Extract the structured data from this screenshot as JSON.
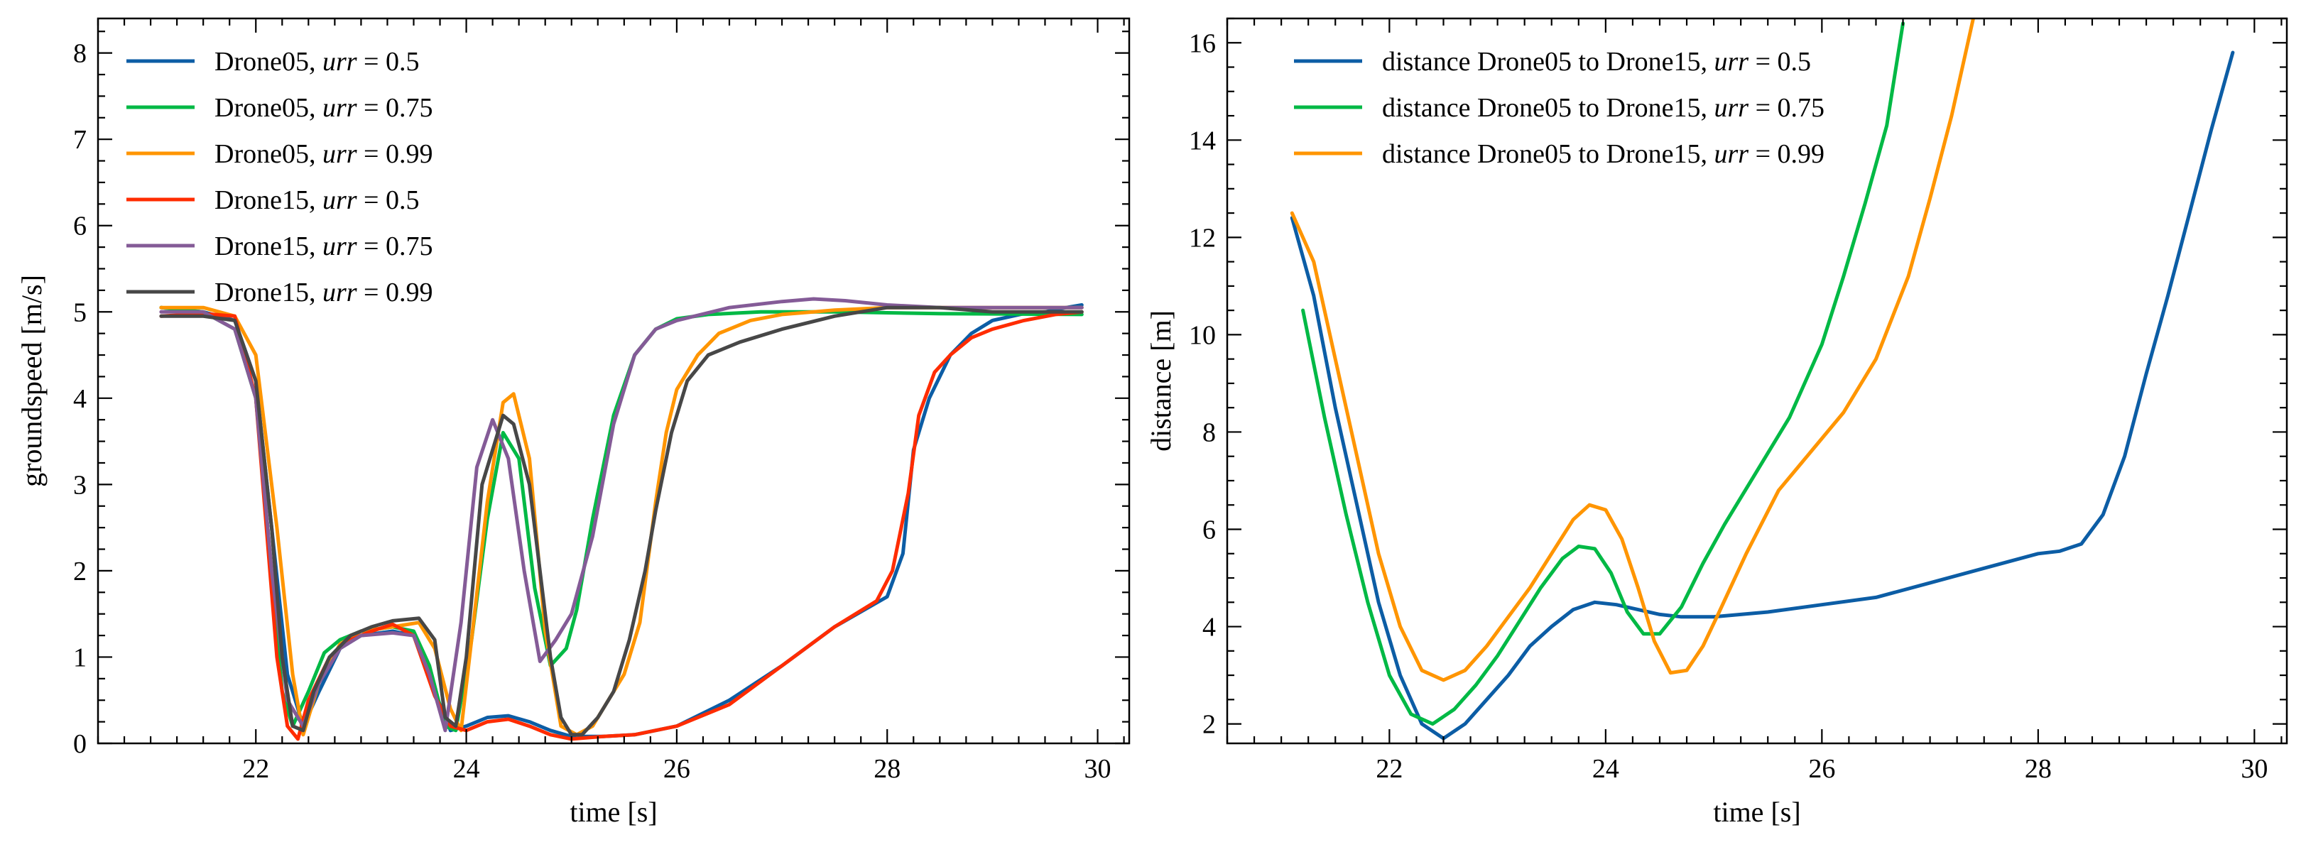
{
  "chart_data": [
    {
      "type": "line",
      "xlabel": "time [s]",
      "ylabel": "groundspeed [m/s]",
      "xlim": [
        20.5,
        30.3
      ],
      "ylim": [
        0,
        8.4
      ],
      "xticks": [
        "22",
        "24",
        "26",
        "28",
        "30"
      ],
      "yticks": [
        "0",
        "1",
        "2",
        "3",
        "4",
        "5",
        "6",
        "7",
        "8"
      ],
      "legend_position": "top-left",
      "series": [
        {
          "name": "Drone05, urr = 0.5",
          "color": "#0C5DA5",
          "x": [
            21.1,
            21.5,
            21.8,
            22.0,
            22.15,
            22.3,
            22.45,
            22.6,
            22.8,
            23.0,
            23.3,
            23.5,
            23.7,
            23.85,
            24.0,
            24.2,
            24.4,
            24.6,
            24.8,
            25.0,
            25.3,
            25.6,
            26.0,
            26.5,
            27.0,
            27.5,
            28.0,
            28.15,
            28.25,
            28.4,
            28.6,
            28.8,
            29.0,
            29.3,
            29.5,
            29.7,
            29.85
          ],
          "y": [
            5.05,
            5.0,
            4.9,
            4.2,
            2.5,
            0.8,
            0.2,
            0.6,
            1.1,
            1.25,
            1.3,
            1.25,
            0.6,
            0.15,
            0.2,
            0.3,
            0.32,
            0.25,
            0.15,
            0.08,
            0.08,
            0.1,
            0.2,
            0.5,
            0.9,
            1.35,
            1.7,
            2.2,
            3.4,
            4.0,
            4.5,
            4.75,
            4.9,
            4.98,
            5.0,
            5.05,
            5.08
          ]
        },
        {
          "name": "Drone05, urr = 0.75",
          "color": "#00B945",
          "x": [
            21.1,
            21.5,
            21.8,
            22.0,
            22.15,
            22.25,
            22.35,
            22.5,
            22.65,
            22.8,
            23.0,
            23.3,
            23.5,
            23.65,
            23.8,
            23.9,
            24.05,
            24.2,
            24.35,
            24.5,
            24.65,
            24.8,
            24.95,
            25.05,
            25.2,
            25.4,
            25.6,
            25.8,
            26.0,
            26.3,
            26.8,
            27.5,
            28.5,
            29.85
          ],
          "y": [
            5.05,
            5.0,
            4.8,
            4.0,
            2.0,
            0.6,
            0.2,
            0.6,
            1.05,
            1.2,
            1.3,
            1.35,
            1.3,
            0.9,
            0.2,
            0.15,
            1.2,
            2.6,
            3.6,
            3.3,
            1.8,
            0.9,
            1.1,
            1.55,
            2.6,
            3.8,
            4.5,
            4.8,
            4.92,
            4.97,
            5.0,
            5.0,
            4.98,
            4.97
          ]
        },
        {
          "name": "Drone05, urr = 0.99",
          "color": "#FF9500",
          "x": [
            21.1,
            21.5,
            21.8,
            22.0,
            22.2,
            22.35,
            22.45,
            22.6,
            22.8,
            23.0,
            23.3,
            23.55,
            23.7,
            23.85,
            23.95,
            24.05,
            24.2,
            24.35,
            24.45,
            24.6,
            24.75,
            24.9,
            25.05,
            25.2,
            25.35,
            25.5,
            25.65,
            25.8,
            25.9,
            26.0,
            26.2,
            26.4,
            26.7,
            27.0,
            27.5,
            28.0,
            29.0,
            29.85
          ],
          "y": [
            5.05,
            5.05,
            4.95,
            4.5,
            2.5,
            0.8,
            0.1,
            0.7,
            1.15,
            1.3,
            1.35,
            1.4,
            1.1,
            0.4,
            0.15,
            1.2,
            2.8,
            3.95,
            4.05,
            3.3,
            1.3,
            0.2,
            0.1,
            0.2,
            0.5,
            0.8,
            1.4,
            2.8,
            3.6,
            4.1,
            4.5,
            4.75,
            4.9,
            4.97,
            5.02,
            5.05,
            5.05,
            5.05
          ]
        },
        {
          "name": "Drone15, urr = 0.5",
          "color": "#FF2C00",
          "x": [
            21.1,
            21.5,
            21.8,
            22.0,
            22.1,
            22.2,
            22.3,
            22.4,
            22.5,
            22.7,
            22.9,
            23.1,
            23.3,
            23.5,
            23.7,
            23.85,
            24.0,
            24.2,
            24.4,
            24.6,
            24.8,
            25.0,
            25.3,
            25.6,
            26.0,
            26.5,
            27.0,
            27.5,
            27.9,
            28.05,
            28.2,
            28.3,
            28.45,
            28.6,
            28.8,
            29.0,
            29.3,
            29.6,
            29.85
          ],
          "y": [
            4.95,
            4.98,
            4.95,
            4.0,
            2.5,
            1.0,
            0.2,
            0.05,
            0.5,
            1.0,
            1.2,
            1.3,
            1.38,
            1.25,
            0.55,
            0.2,
            0.15,
            0.25,
            0.28,
            0.2,
            0.1,
            0.05,
            0.08,
            0.1,
            0.2,
            0.45,
            0.9,
            1.35,
            1.65,
            2.0,
            2.9,
            3.8,
            4.3,
            4.5,
            4.7,
            4.8,
            4.9,
            4.97,
            5.0
          ]
        },
        {
          "name": "Drone15, urr = 0.75",
          "color": "#845B97",
          "x": [
            21.1,
            21.5,
            21.8,
            22.0,
            22.15,
            22.3,
            22.45,
            22.6,
            22.8,
            23.0,
            23.3,
            23.5,
            23.65,
            23.8,
            23.95,
            24.1,
            24.25,
            24.4,
            24.55,
            24.7,
            24.85,
            25.0,
            25.2,
            25.4,
            25.6,
            25.8,
            26.0,
            26.5,
            27.0,
            27.3,
            27.6,
            28.0,
            28.5,
            29.0,
            29.85
          ],
          "y": [
            5.0,
            5.0,
            4.8,
            4.0,
            2.0,
            0.5,
            0.2,
            0.7,
            1.1,
            1.25,
            1.28,
            1.25,
            0.8,
            0.15,
            1.4,
            3.2,
            3.75,
            3.3,
            2.0,
            0.95,
            1.2,
            1.5,
            2.4,
            3.7,
            4.5,
            4.8,
            4.9,
            5.05,
            5.12,
            5.15,
            5.13,
            5.08,
            5.05,
            5.05,
            5.05
          ]
        },
        {
          "name": "Drone15, urr = 0.99",
          "color": "#474747",
          "x": [
            21.1,
            21.5,
            21.8,
            22.0,
            22.15,
            22.25,
            22.35,
            22.45,
            22.55,
            22.7,
            22.9,
            23.1,
            23.3,
            23.55,
            23.7,
            23.8,
            23.9,
            24.0,
            24.15,
            24.35,
            24.45,
            24.6,
            24.7,
            24.8,
            24.9,
            25.0,
            25.1,
            25.25,
            25.4,
            25.55,
            25.7,
            25.8,
            25.95,
            26.1,
            26.3,
            26.6,
            27.0,
            27.5,
            28.0,
            28.5,
            29.0,
            29.85
          ],
          "y": [
            4.95,
            4.95,
            4.9,
            4.2,
            2.5,
            1.0,
            0.2,
            0.15,
            0.6,
            1.0,
            1.25,
            1.35,
            1.42,
            1.45,
            1.2,
            0.3,
            0.2,
            1.0,
            3.0,
            3.8,
            3.7,
            3.0,
            2.0,
            1.0,
            0.3,
            0.1,
            0.1,
            0.3,
            0.6,
            1.2,
            2.0,
            2.7,
            3.6,
            4.2,
            4.5,
            4.65,
            4.8,
            4.95,
            5.05,
            5.05,
            5.0,
            5.0
          ]
        }
      ]
    },
    {
      "type": "line",
      "xlabel": "time [s]",
      "ylabel": "distance [m]",
      "xlim": [
        20.5,
        30.3
      ],
      "ylim": [
        1.6,
        16.5
      ],
      "xticks": [
        "22",
        "24",
        "26",
        "28",
        "30"
      ],
      "yticks": [
        "2",
        "4",
        "6",
        "8",
        "10",
        "12",
        "14",
        "16"
      ],
      "legend_position": "top-left",
      "series": [
        {
          "name": "distance Drone05 to Drone15, urr = 0.5",
          "color": "#0C5DA5",
          "x": [
            21.1,
            21.3,
            21.5,
            21.7,
            21.9,
            22.1,
            22.3,
            22.5,
            22.7,
            22.9,
            23.1,
            23.3,
            23.5,
            23.7,
            23.9,
            24.1,
            24.3,
            24.5,
            24.7,
            25.0,
            25.5,
            26.0,
            26.5,
            27.0,
            27.5,
            28.0,
            28.2,
            28.4,
            28.6,
            28.8,
            29.0,
            29.2,
            29.4,
            29.6,
            29.8
          ],
          "y": [
            12.4,
            10.8,
            8.5,
            6.5,
            4.5,
            3.0,
            2.0,
            1.7,
            2.0,
            2.5,
            3.0,
            3.6,
            4.0,
            4.35,
            4.5,
            4.45,
            4.35,
            4.25,
            4.2,
            4.2,
            4.3,
            4.45,
            4.6,
            4.9,
            5.2,
            5.5,
            5.55,
            5.7,
            6.3,
            7.5,
            9.2,
            10.8,
            12.5,
            14.2,
            15.8
          ]
        },
        {
          "name": "distance Drone05 to Drone15, urr = 0.75",
          "color": "#00B945",
          "x": [
            21.2,
            21.4,
            21.6,
            21.8,
            22.0,
            22.2,
            22.4,
            22.6,
            22.8,
            23.0,
            23.2,
            23.4,
            23.6,
            23.75,
            23.9,
            24.05,
            24.2,
            24.35,
            24.5,
            24.7,
            24.9,
            25.1,
            25.4,
            25.7,
            26.0,
            26.2,
            26.4,
            26.6,
            26.75
          ],
          "y": [
            10.5,
            8.3,
            6.3,
            4.5,
            3.0,
            2.2,
            2.0,
            2.3,
            2.8,
            3.4,
            4.1,
            4.8,
            5.4,
            5.65,
            5.6,
            5.1,
            4.3,
            3.85,
            3.85,
            4.4,
            5.3,
            6.1,
            7.2,
            8.3,
            9.8,
            11.2,
            12.7,
            14.3,
            16.4
          ]
        },
        {
          "name": "distance Drone05 to Drone15, urr = 0.99",
          "color": "#FF9500",
          "x": [
            21.1,
            21.3,
            21.5,
            21.7,
            21.9,
            22.1,
            22.3,
            22.5,
            22.7,
            22.9,
            23.1,
            23.3,
            23.5,
            23.7,
            23.85,
            24.0,
            24.15,
            24.3,
            24.45,
            24.6,
            24.75,
            24.9,
            25.05,
            25.3,
            25.6,
            25.9,
            26.2,
            26.5,
            26.8,
            27.0,
            27.2,
            27.4
          ],
          "y": [
            12.5,
            11.5,
            9.5,
            7.5,
            5.5,
            4.0,
            3.1,
            2.9,
            3.1,
            3.6,
            4.2,
            4.8,
            5.5,
            6.2,
            6.5,
            6.4,
            5.8,
            4.8,
            3.7,
            3.05,
            3.1,
            3.6,
            4.3,
            5.5,
            6.8,
            7.6,
            8.4,
            9.5,
            11.2,
            12.8,
            14.5,
            16.5
          ]
        }
      ]
    }
  ]
}
